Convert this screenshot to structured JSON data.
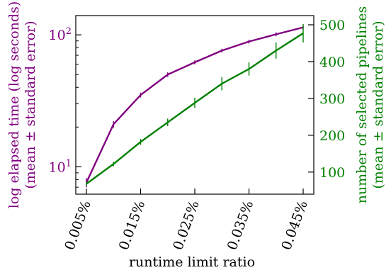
{
  "chart_data": {
    "type": "line",
    "xlabel": "runtime limit ratio",
    "x_tick_labels": [
      "0.005%",
      "0.015%",
      "0.025%",
      "0.035%",
      "0.045%"
    ],
    "x_ticks": [
      0.005,
      0.015,
      0.025,
      0.035,
      0.045
    ],
    "x": [
      0.005,
      0.01,
      0.015,
      0.02,
      0.025,
      0.03,
      0.035,
      0.04,
      0.045
    ],
    "xlim": [
      0.005,
      0.045
    ],
    "left_axis": {
      "label_line1": "log elapsed time (log seconds)",
      "label_line2": "(mean ± standard error)",
      "scale": "log",
      "ylim": [
        6.2,
        140
      ],
      "major_ticks": [
        10,
        100
      ],
      "major_tick_labels": [
        "10",
        "10"
      ],
      "major_tick_exponents": [
        "1",
        "2"
      ],
      "color": "#800080"
    },
    "right_axis": {
      "label_line1": "number of selected pipelines",
      "label_line2": "(mean ± standard error)",
      "scale": "linear",
      "ylim": [
        40,
        525
      ],
      "ticks": [
        100,
        200,
        300,
        400,
        500
      ],
      "tick_labels": [
        "100",
        "200",
        "300",
        "400",
        "500"
      ],
      "color": "#008000"
    },
    "series": [
      {
        "axis": "left",
        "color": "#800080",
        "values": [
          7.6,
          21,
          35,
          50,
          62,
          76,
          89,
          101,
          114
        ],
        "errors": [
          0.6,
          1.2,
          1.5,
          2,
          2.2,
          2.5,
          3,
          3.5,
          4
        ]
      },
      {
        "axis": "right",
        "color": "#008000",
        "values": [
          68,
          122,
          182,
          235,
          288,
          340,
          380,
          430,
          477
        ],
        "errors": [
          5,
          6,
          8,
          10,
          14,
          18,
          18,
          22,
          25
        ]
      }
    ],
    "grid": false
  }
}
